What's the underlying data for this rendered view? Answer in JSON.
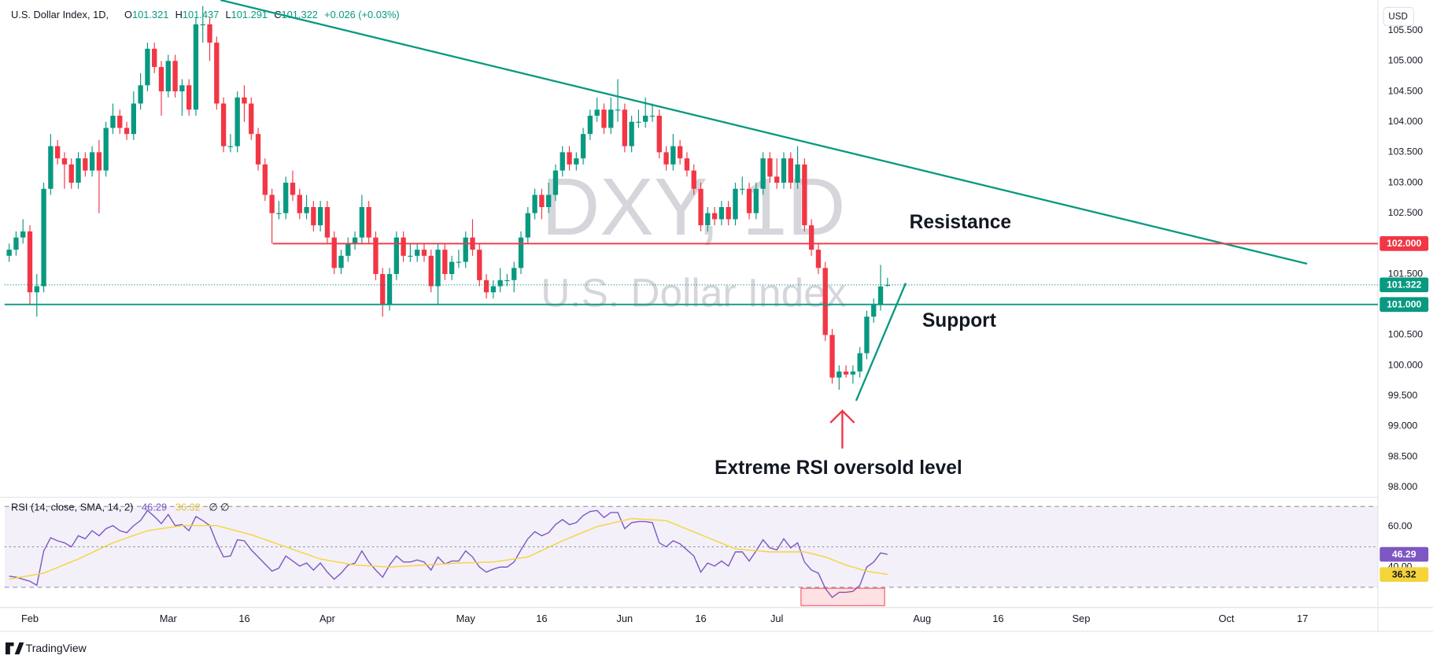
{
  "chart_data": [
    {
      "type": "candlestick",
      "title": "U.S. Dollar Index, 1D,",
      "watermark": "DXY, 1D",
      "watermark_subtitle": "U.S. Dollar Index",
      "currency": "USD",
      "ohlc_labels": [
        "O",
        "H",
        "L",
        "C"
      ],
      "change": "+0.026 (+0.03%)",
      "up_color": "#089981",
      "down_color": "#f23645",
      "xlim": [
        -0.66,
        197.9
      ],
      "xticks": [
        {
          "value": 3,
          "label": "Feb"
        },
        {
          "value": 23,
          "label": "Mar"
        },
        {
          "value": 34,
          "label": "16"
        },
        {
          "value": 46,
          "label": "Apr"
        },
        {
          "value": 66,
          "label": "May"
        },
        {
          "value": 77,
          "label": "16"
        },
        {
          "value": 89,
          "label": "Jun"
        },
        {
          "value": 100,
          "label": "16"
        },
        {
          "value": 111,
          "label": "Jul"
        },
        {
          "value": 132,
          "label": "Aug"
        },
        {
          "value": 143,
          "label": "16"
        },
        {
          "value": 155,
          "label": "Sep"
        },
        {
          "value": 176,
          "label": "Oct"
        },
        {
          "value": 187,
          "label": "17"
        }
      ],
      "ylim": [
        97.85,
        106.0
      ],
      "yticks": [
        {
          "value": 98,
          "label": "98.000"
        },
        {
          "value": 98.5,
          "label": "98.500"
        },
        {
          "value": 99,
          "label": "99.000"
        },
        {
          "value": 99.5,
          "label": "99.500"
        },
        {
          "value": 100,
          "label": "100.000"
        },
        {
          "value": 100.5,
          "label": "100.500"
        },
        {
          "value": 101,
          "label": "101.000"
        },
        {
          "value": 101.5,
          "label": "101.500"
        },
        {
          "value": 102,
          "label": "102.000"
        },
        {
          "value": 102.5,
          "label": "102.500"
        },
        {
          "value": 103,
          "label": "103.000"
        },
        {
          "value": 103.5,
          "label": "103.500"
        },
        {
          "value": 104,
          "label": "104.000"
        },
        {
          "value": 104.5,
          "label": "104.500"
        },
        {
          "value": 105,
          "label": "105.000"
        },
        {
          "value": 105.5,
          "label": "105.500"
        }
      ],
      "hlines": [
        {
          "value": 102,
          "label": "102.000",
          "color": "#f23645"
        },
        {
          "value": 101,
          "label": "101.000",
          "color": "#089981"
        }
      ],
      "annotations": [
        "Resistance",
        "Support",
        "Extreme RSI oversold level"
      ],
      "footer": "TradingView",
      "open": [
        101.8,
        101.9,
        102.1,
        102.2,
        101.2,
        101.3,
        102.9,
        103.6,
        103.4,
        103.3,
        103.0,
        103.4,
        103.2,
        103.5,
        103.2,
        103.9,
        104.1,
        103.9,
        103.8,
        104.3,
        104.6,
        105.2,
        104.9,
        104.5,
        105.0,
        104.5,
        104.6,
        104.2,
        105.6,
        105.6,
        105.3,
        104.3,
        103.6,
        103.6,
        104.4,
        104.3,
        103.8,
        103.3,
        102.8,
        102.5,
        102.5,
        103.0,
        102.8,
        102.5,
        102.6,
        102.3,
        102.6,
        102.1,
        101.6,
        101.8,
        102.0,
        102.1,
        102.6,
        102.1,
        101.5,
        101.0,
        101.5,
        102.1,
        101.8,
        101.8,
        101.9,
        101.8,
        101.3,
        101.9,
        101.5,
        101.7,
        101.7,
        102.1,
        101.9,
        101.4,
        101.2,
        101.3,
        101.4,
        101.4,
        101.6,
        102.1,
        102.5,
        102.8,
        102.6,
        102.8,
        103.2,
        103.5,
        103.3,
        103.4,
        103.8,
        104.1,
        104.2,
        103.9,
        104.2,
        104.2,
        103.6,
        104.0,
        104.0,
        104.1,
        104.1,
        103.5,
        103.3,
        103.6,
        103.4,
        103.2,
        102.9,
        102.3,
        102.5,
        102.4,
        102.6,
        102.4,
        102.9,
        102.9,
        102.5,
        102.9,
        103.4,
        103.1,
        103.0,
        103.4,
        103.0,
        103.3,
        102.3,
        101.9,
        101.6,
        100.5,
        99.8,
        99.9,
        99.85,
        99.9,
        100.2,
        100.8,
        101.0,
        101.321
      ],
      "high": [
        102.0,
        102.2,
        102.4,
        102.3,
        101.5,
        103.0,
        103.8,
        103.7,
        103.5,
        103.4,
        103.5,
        103.5,
        103.6,
        103.7,
        104.0,
        104.3,
        104.2,
        104.0,
        104.5,
        104.8,
        105.3,
        105.3,
        105.0,
        105.1,
        105.1,
        104.7,
        104.7,
        105.7,
        105.9,
        105.7,
        105.4,
        104.4,
        103.8,
        104.5,
        104.6,
        104.4,
        103.9,
        103.4,
        102.9,
        102.7,
        103.1,
        103.2,
        102.9,
        102.8,
        102.7,
        102.7,
        102.7,
        102.2,
        101.9,
        102.1,
        102.2,
        102.8,
        102.7,
        102.2,
        101.6,
        101.6,
        102.2,
        102.2,
        102.0,
        102.0,
        102.0,
        101.9,
        102.0,
        102.0,
        101.8,
        101.9,
        102.2,
        102.4,
        102.0,
        101.5,
        101.4,
        101.6,
        101.5,
        101.7,
        102.2,
        102.6,
        102.9,
        102.9,
        103.0,
        103.3,
        103.6,
        103.6,
        103.5,
        103.9,
        104.2,
        104.4,
        104.3,
        104.4,
        104.7,
        104.3,
        104.1,
        104.2,
        104.4,
        104.3,
        104.2,
        103.6,
        103.8,
        103.7,
        103.5,
        103.3,
        103.0,
        102.6,
        102.6,
        102.7,
        102.7,
        103.0,
        103.1,
        103.0,
        103.0,
        103.5,
        103.5,
        103.4,
        103.5,
        103.5,
        103.6,
        103.4,
        102.4,
        102.0,
        101.7,
        100.6,
        100.0,
        100.0,
        100.0,
        100.3,
        100.9,
        101.1,
        101.65,
        101.437
      ],
      "low": [
        101.7,
        101.8,
        102.0,
        101.0,
        100.8,
        101.2,
        102.8,
        103.3,
        102.9,
        102.9,
        102.9,
        103.1,
        103.1,
        102.5,
        103.1,
        103.8,
        103.8,
        103.7,
        103.7,
        104.2,
        104.5,
        104.8,
        104.1,
        104.4,
        104.4,
        104.1,
        104.1,
        104.1,
        105.3,
        105.0,
        104.2,
        103.5,
        103.5,
        103.5,
        104.0,
        103.7,
        103.2,
        102.7,
        102.0,
        102.4,
        102.4,
        102.7,
        102.4,
        102.4,
        102.2,
        102.2,
        102.0,
        101.5,
        101.5,
        101.7,
        101.9,
        102.0,
        102.0,
        101.4,
        100.8,
        100.9,
        101.4,
        101.7,
        101.7,
        101.7,
        101.7,
        101.2,
        101.0,
        101.4,
        101.4,
        101.6,
        101.6,
        101.8,
        101.3,
        101.1,
        101.1,
        101.2,
        101.3,
        101.2,
        101.5,
        102.0,
        102.4,
        102.4,
        102.5,
        102.7,
        103.1,
        103.2,
        103.2,
        103.3,
        103.7,
        104.0,
        103.8,
        103.8,
        104.0,
        103.5,
        103.5,
        103.9,
        103.9,
        104.0,
        103.4,
        103.2,
        103.2,
        103.3,
        103.1,
        102.8,
        102.2,
        102.2,
        102.3,
        102.3,
        102.3,
        102.3,
        102.8,
        102.4,
        102.4,
        102.8,
        103.0,
        102.9,
        102.9,
        102.9,
        102.9,
        102.2,
        101.8,
        101.5,
        100.4,
        99.7,
        99.6,
        99.8,
        99.7,
        99.8,
        100.1,
        100.7,
        100.9,
        101.291
      ],
      "close": [
        101.9,
        102.1,
        102.2,
        101.2,
        101.3,
        102.9,
        103.6,
        103.4,
        103.3,
        103.0,
        103.4,
        103.2,
        103.5,
        103.2,
        103.9,
        104.1,
        103.9,
        103.8,
        104.3,
        104.6,
        105.2,
        104.9,
        104.5,
        105.0,
        104.5,
        104.6,
        104.2,
        105.6,
        105.6,
        105.3,
        104.3,
        103.6,
        103.6,
        104.4,
        104.3,
        103.8,
        103.3,
        102.8,
        102.5,
        102.5,
        103.0,
        102.8,
        102.5,
        102.6,
        102.3,
        102.6,
        102.1,
        101.6,
        101.8,
        102.0,
        102.1,
        102.6,
        102.1,
        101.5,
        101.0,
        101.5,
        102.1,
        101.8,
        101.8,
        101.9,
        101.8,
        101.3,
        101.9,
        101.5,
        101.7,
        101.7,
        102.1,
        101.9,
        101.4,
        101.2,
        101.3,
        101.4,
        101.4,
        101.6,
        102.1,
        102.5,
        102.8,
        102.6,
        102.8,
        103.2,
        103.5,
        103.3,
        103.4,
        103.8,
        104.1,
        104.2,
        103.9,
        104.2,
        104.2,
        103.6,
        104.0,
        104.0,
        104.1,
        104.1,
        103.5,
        103.3,
        103.6,
        103.4,
        103.2,
        102.9,
        102.3,
        102.5,
        102.4,
        102.6,
        102.4,
        102.9,
        102.9,
        102.5,
        102.9,
        103.4,
        103.1,
        103.0,
        103.4,
        103.0,
        103.3,
        102.3,
        101.9,
        101.6,
        100.5,
        99.8,
        99.9,
        99.85,
        99.9,
        100.2,
        100.8,
        101.0,
        101.296,
        101.322
      ]
    },
    {
      "type": "line",
      "title": "RSI (14, close, SMA, 14, 2)",
      "suffix": "∅ ∅",
      "ylim": [
        20,
        75
      ],
      "yticks": [
        {
          "value": 60,
          "label": "60.00"
        },
        {
          "value": 40,
          "label": "40.00"
        }
      ],
      "levels": [
        70,
        50,
        30
      ],
      "series": [
        {
          "color": "#7e57c2",
          "values": [
            35.5,
            35,
            34,
            33,
            31,
            48,
            54.5,
            53,
            52,
            50,
            55.5,
            54,
            58,
            55.5,
            59,
            60.5,
            58,
            57,
            60.5,
            63,
            68,
            65,
            61.5,
            66,
            60.5,
            61,
            58,
            65,
            63,
            60.5,
            52,
            45,
            45.5,
            53.5,
            53,
            48.5,
            45,
            41.5,
            38,
            39.5,
            45.5,
            43,
            40.5,
            42,
            38.5,
            42,
            37.5,
            34,
            37,
            41,
            42,
            48,
            42.5,
            38.5,
            35,
            41,
            45.5,
            42.5,
            42.5,
            43.5,
            42.5,
            38.5,
            45,
            41.5,
            43,
            43,
            48,
            45,
            40,
            37.5,
            39,
            40,
            40,
            42.5,
            48.5,
            54,
            57.5,
            55.5,
            57,
            61,
            63.5,
            61,
            62,
            65.5,
            67.5,
            68,
            64.5,
            67,
            67,
            59,
            62,
            62.5,
            62.5,
            62,
            52,
            50,
            53,
            51.5,
            48.5,
            45.5,
            37.5,
            42,
            40.5,
            43,
            40.5,
            47.5,
            47.5,
            43,
            48,
            53.5,
            49.5,
            48.5,
            54,
            49.5,
            52,
            42.5,
            38.5,
            37,
            29.5,
            25,
            27.5,
            27.5,
            28,
            31,
            40,
            42.5,
            47,
            46.29
          ]
        },
        {
          "color": "#f5d43a",
          "values": [
            34,
            34.6,
            35.2,
            35.8,
            36.4,
            37,
            38.4,
            39.8,
            41.2,
            42.6,
            44,
            45.6,
            47.2,
            48.8,
            50.4,
            52,
            53.2,
            54.4,
            55.6,
            56.8,
            58,
            58.5,
            59,
            59.5,
            60,
            60.5,
            60.5,
            60.5,
            60.5,
            60.5,
            60.5,
            59.6,
            58.7,
            57.8,
            56.9,
            56,
            54.8,
            53.6,
            52.4,
            51.2,
            50,
            48.8,
            47.6,
            46.4,
            45.2,
            44,
            43.4,
            42.8,
            42.2,
            41.6,
            41,
            40.8,
            40.6,
            40.4,
            40.2,
            40,
            40.2,
            40.4,
            40.6,
            40.8,
            41,
            41.2,
            41.4,
            41.6,
            41.8,
            42,
            42.1,
            42.2,
            42.3,
            42.4,
            42.5,
            43,
            43.5,
            44,
            44.5,
            45,
            46.6,
            48.2,
            49.8,
            51.4,
            53,
            54.4,
            55.8,
            57.2,
            58.6,
            60,
            60.8,
            61.6,
            62.4,
            63.2,
            64,
            63.8,
            63.6,
            63.4,
            63.2,
            63,
            61.6,
            60.2,
            58.8,
            57.4,
            56,
            54.6,
            53.2,
            51.8,
            50.4,
            49,
            48.7,
            48.4,
            48.1,
            47.8,
            47.5,
            47.5,
            47.5,
            47.5,
            47.5,
            47.5,
            46.7,
            45.8,
            45,
            43.7,
            42.3,
            41,
            40,
            39,
            38,
            37.4,
            36.9,
            36.32
          ]
        }
      ]
    }
  ]
}
